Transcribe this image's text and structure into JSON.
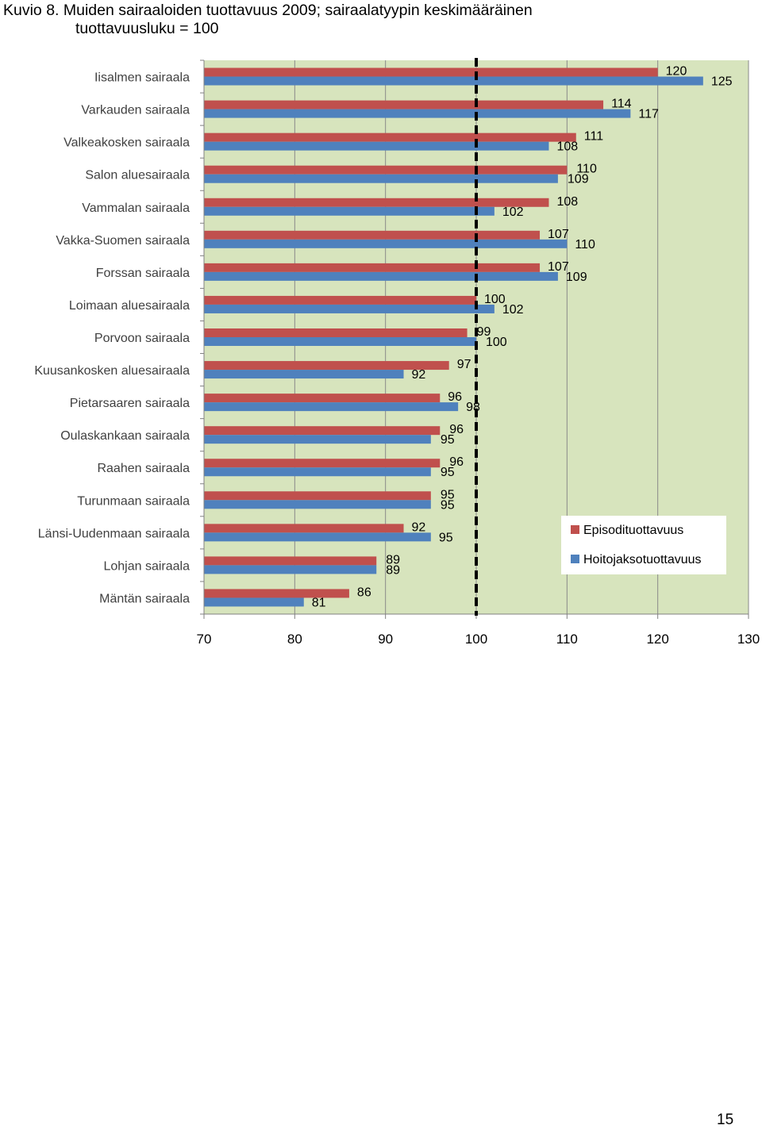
{
  "caption": {
    "label": "Kuvio 8.",
    "text_line1": "Muiden sairaaloiden tuottavuus 2009; sairaalatyypin keskimääräinen",
    "text_line2": "tuottavuusluku = 100"
  },
  "page_number": "15",
  "colors": {
    "plot_background": "#d7e4bd",
    "episode": "#c0504d",
    "care_period": "#4f81bd",
    "reference_line": "#000000"
  },
  "chart_data": {
    "type": "bar",
    "orientation": "horizontal",
    "categories": [
      "Iisalmen sairaala",
      "Varkauden sairaala",
      "Valkeakosken sairaala",
      "Salon aluesairaala",
      "Vammalan sairaala",
      "Vakka-Suomen sairaala",
      "Forssan sairaala",
      "Loimaan aluesairaala",
      "Porvoon sairaala",
      "Kuusankosken aluesairaala",
      "Pietarsaaren sairaala",
      "Oulaskankaan sairaala",
      "Raahen sairaala",
      "Turunmaan sairaala",
      "Länsi-Uudenmaan sairaala",
      "Lohjan sairaala",
      "Mäntän sairaala"
    ],
    "series": [
      {
        "name": "Episodituottavuus",
        "color": "#c0504d",
        "values": [
          120,
          114,
          111,
          110,
          108,
          107,
          107,
          100,
          99,
          97,
          96,
          96,
          96,
          95,
          92,
          89,
          86
        ]
      },
      {
        "name": "Hoitojaksotuottavuus",
        "color": "#4f81bd",
        "values": [
          125,
          117,
          108,
          109,
          102,
          110,
          109,
          102,
          100,
          92,
          98,
          95,
          95,
          95,
          95,
          89,
          81
        ]
      }
    ],
    "xlim": [
      70,
      130
    ],
    "xticks": [
      "70",
      "80",
      "90",
      "100",
      "110",
      "120",
      "130"
    ],
    "reference_value": 100,
    "legend_position": "lower-right inside plot",
    "title": "",
    "xlabel": "",
    "ylabel": ""
  }
}
